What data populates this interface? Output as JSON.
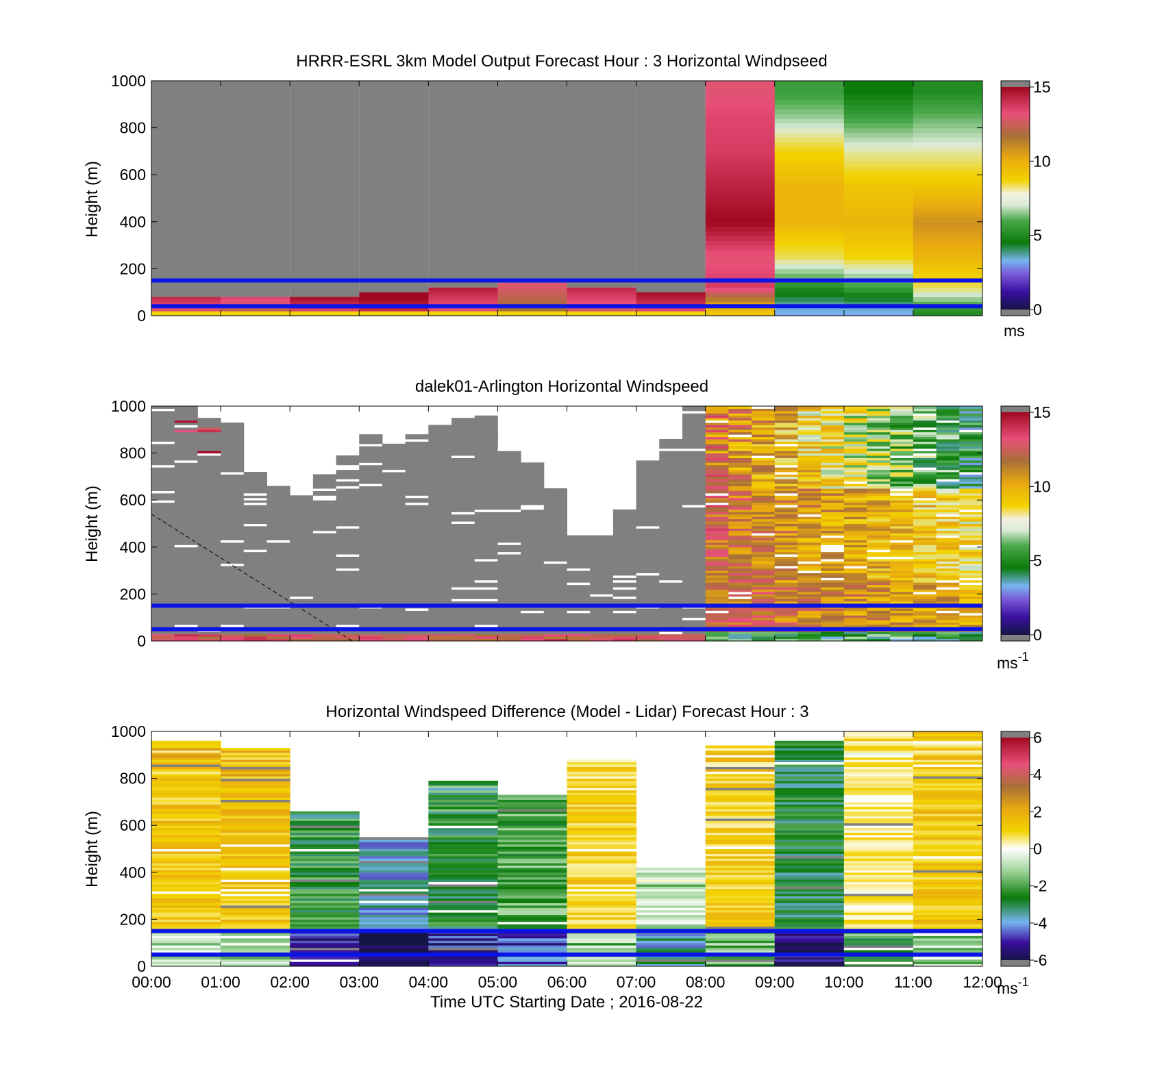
{
  "colors": {
    "background": "#ffffff",
    "no_data": "#808080",
    "layer_line": "#0a14e6",
    "colormap_windspeed": [
      "#151545",
      "#3a0fa0",
      "#7a5ad8",
      "#78b4f0",
      "#0a7a0a",
      "#4aa84a",
      "#dcebd8",
      "#f2d200",
      "#e8a810",
      "#a87038",
      "#e84f7a",
      "#a00820"
    ],
    "colormap_difference": [
      "#151545",
      "#3a0fa0",
      "#78b4f0",
      "#0a7a0a",
      "#9fd49a",
      "#ffffff",
      "#f2d200",
      "#e8a810",
      "#a87038",
      "#e84f7a",
      "#a00820"
    ]
  },
  "x_axis": {
    "label": "Time UTC  Starting Date ; 2016-08-22",
    "ticks": [
      "00:00",
      "01:00",
      "02:00",
      "03:00",
      "04:00",
      "05:00",
      "06:00",
      "07:00",
      "08:00",
      "09:00",
      "10:00",
      "11:00",
      "12:00"
    ]
  },
  "chart_data": [
    {
      "type": "heatmap",
      "title": "HRRR-ESRL 3km Model Output   Forecast Hour : 3 Horizontal Windpseed",
      "ylabel": "Height (m)",
      "xlim_hours": [
        0,
        12
      ],
      "ylim": [
        0,
        1000
      ],
      "yticks": [
        "0",
        "200",
        "400",
        "600",
        "800",
        "1000"
      ],
      "layer_lines_m": [
        40,
        150
      ],
      "colorbar": {
        "ticks": [
          "0",
          "5",
          "10",
          "15"
        ],
        "range": [
          0,
          15
        ],
        "unit": "ms"
      },
      "column_tops_m": [
        80,
        80,
        80,
        100,
        120,
        140,
        120,
        100,
        1000,
        1000,
        1000,
        1000
      ],
      "profiles_ms": [
        {
          "time": "08:00",
          "heights_m": [
            20,
            120,
            250,
            400,
            550,
            700,
            850,
            950
          ],
          "values": [
            10,
            14,
            13.5,
            15,
            14.5,
            14,
            13.8,
            13.5
          ]
        },
        {
          "time": "09:00",
          "heights_m": [
            20,
            120,
            250,
            400,
            550,
            700,
            850,
            950
          ],
          "values": [
            4,
            6,
            9,
            10.5,
            10.5,
            9.5,
            7.5,
            6.5
          ]
        },
        {
          "time": "10:00",
          "heights_m": [
            20,
            120,
            250,
            400,
            550,
            700,
            850,
            950
          ],
          "values": [
            4,
            6.5,
            9.5,
            10.5,
            10,
            8.5,
            6.5,
            5.5
          ]
        },
        {
          "time": "11:00",
          "heights_m": [
            20,
            120,
            250,
            400,
            550,
            700,
            850,
            950
          ],
          "values": [
            6,
            9,
            10.5,
            11.5,
            10,
            8.5,
            7,
            6
          ]
        }
      ]
    },
    {
      "type": "heatmap",
      "title": "dalek01-Arlington  Horizontal Windspeed",
      "ylabel": "Height (m)",
      "xlim_hours": [
        0,
        12
      ],
      "ylim": [
        0,
        1000
      ],
      "yticks": [
        "0",
        "200",
        "400",
        "600",
        "800",
        "1000"
      ],
      "layer_lines_m": [
        50,
        150
      ],
      "colorbar": {
        "ticks": [
          "0",
          "5",
          "10",
          "15"
        ],
        "range": [
          0,
          15
        ],
        "unit": "ms",
        "unit_exponent": "-1"
      },
      "mixing_layer_line": {
        "x_hours": [
          0,
          2.9
        ],
        "y_m": [
          540,
          0
        ]
      },
      "data_top_m": [
        1000,
        1000,
        950,
        930,
        720,
        660,
        620,
        710,
        790,
        880,
        840,
        880,
        920,
        950,
        960,
        820,
        760,
        650,
        450,
        450,
        560,
        780,
        860,
        1000,
        1000,
        1000,
        1000,
        1000,
        1000,
        1000,
        1000,
        1000,
        1000,
        1000,
        1000,
        1000
      ],
      "colored_from_hour": 8.0
    },
    {
      "type": "heatmap",
      "title": "Horizontal Windspeed Difference (Model - Lidar) Forecast Hour : 3",
      "ylabel": "Height (m)",
      "xlabel": "Time UTC  Starting Date ; 2016-08-22",
      "xlim_hours": [
        0,
        12
      ],
      "ylim": [
        0,
        1000
      ],
      "yticks": [
        "0",
        "200",
        "400",
        "600",
        "800",
        "1000"
      ],
      "layer_lines_m": [
        50,
        150
      ],
      "colorbar": {
        "ticks": [
          "-6",
          "-4",
          "-2",
          "0",
          "2",
          "4",
          "6"
        ],
        "range": [
          -6,
          6
        ],
        "unit": "ms",
        "unit_exponent": "-1"
      },
      "column_tops_m": [
        960,
        930,
        660,
        550,
        790,
        730,
        880,
        420,
        940,
        960,
        1000,
        1000
      ],
      "column_mean_diff_ms": [
        1.5,
        1.6,
        -2.2,
        -3.5,
        -2.4,
        -1.8,
        1.2,
        -0.8,
        1.2,
        -2.6,
        0.6,
        1.5
      ]
    }
  ]
}
